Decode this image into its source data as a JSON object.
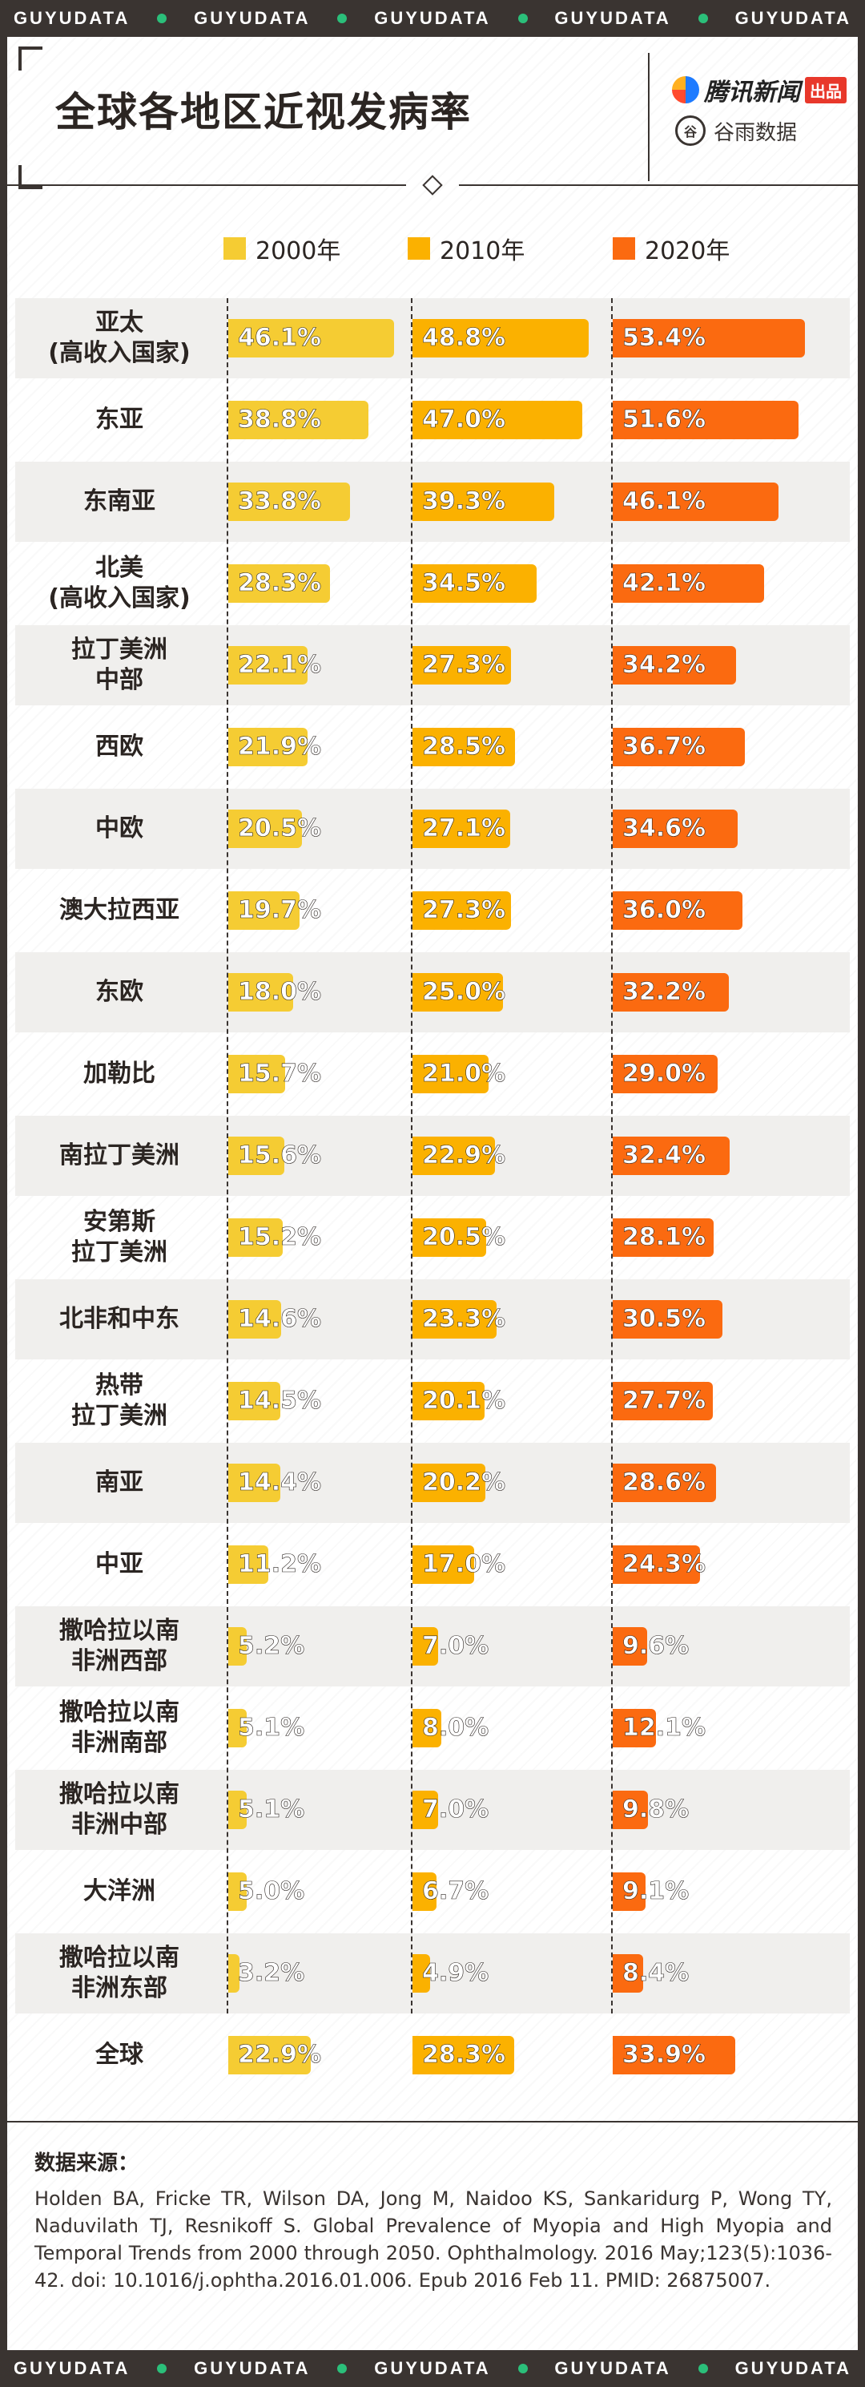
{
  "header": {
    "strip_text": "GUYUDATA",
    "title": "全球各地区近视发病率",
    "brand_tencent": "腾讯新闻",
    "brand_tag": "出品",
    "brand_guyu": "谷雨数据",
    "brand_seal": "谷"
  },
  "colors": {
    "y2000": "#f5cc33",
    "y2010": "#fbb100",
    "y2020": "#fb6a10"
  },
  "chart_data": {
    "type": "bar",
    "title": "全球各地区近视发病率",
    "unit": "%",
    "categories": [
      "亚太\n(高收入国家)",
      "东亚",
      "东南亚",
      "北美\n(高收入国家)",
      "拉丁美洲\n中部",
      "西欧",
      "中欧",
      "澳大拉西亚",
      "东欧",
      "加勒比",
      "南拉丁美洲",
      "安第斯\n拉丁美洲",
      "北非和中东",
      "热带\n拉丁美洲",
      "南亚",
      "中亚",
      "撒哈拉以南\n非洲西部",
      "撒哈拉以南\n非洲南部",
      "撒哈拉以南\n非洲中部",
      "大洋洲",
      "撒哈拉以南\n非洲东部",
      "全球"
    ],
    "series": [
      {
        "name": "2000年",
        "values": [
          46.1,
          38.8,
          33.8,
          28.3,
          22.1,
          21.9,
          20.5,
          19.7,
          18.0,
          15.7,
          15.6,
          15.2,
          14.6,
          14.5,
          14.4,
          11.2,
          5.2,
          5.1,
          5.1,
          5.0,
          3.2,
          22.9
        ],
        "labels": [
          "46.1%",
          "38.8%",
          "33.8%",
          "28.3%",
          "22.1%",
          "21.9%",
          "20.5%",
          "19.7%",
          "18.0%",
          "15.7%",
          "15.6%",
          "15.2%",
          "14.6%",
          "14.5%",
          "14.4%",
          "11.2%",
          "5.2%",
          "5.1%",
          "5.1%",
          "5.0%",
          "3.2%",
          "22.9%"
        ]
      },
      {
        "name": "2010年",
        "values": [
          48.8,
          47.0,
          39.3,
          34.5,
          27.3,
          28.5,
          27.1,
          27.3,
          25.0,
          21.0,
          22.9,
          20.5,
          23.3,
          20.1,
          20.2,
          17.0,
          7.0,
          8.0,
          7.0,
          6.7,
          4.9,
          28.3
        ],
        "labels": [
          "48.8%",
          "47.0%",
          "39.3%",
          "34.5%",
          "27.3%",
          "28.5%",
          "27.1%",
          "27.3%",
          "25.0%",
          "21.0%",
          "22.9%",
          "20.5%",
          "23.3%",
          "20.1%",
          "20.2%",
          "17.0%",
          "7.0%",
          "8.0%",
          "7.0%",
          "6.7%",
          "4.9%",
          "28.3%"
        ]
      },
      {
        "name": "2020年",
        "values": [
          53.4,
          51.6,
          46.1,
          42.1,
          34.2,
          36.7,
          34.6,
          36.0,
          32.2,
          29.0,
          32.4,
          28.1,
          30.5,
          27.7,
          28.6,
          24.3,
          9.6,
          12.1,
          9.8,
          9.1,
          8.4,
          33.9
        ],
        "labels": [
          "53.4%",
          "51.6%",
          "46.1%",
          "42.1%",
          "34.2%",
          "36.7%",
          "34.6%",
          "36.0%",
          "32.2%",
          "29.0%",
          "32.4%",
          "28.1%",
          "30.5%",
          "27.7%",
          "28.6%",
          "24.3%",
          "9.6%",
          "12.1%",
          "9.8%",
          "9.1%",
          "8.4%",
          "33.9%"
        ]
      }
    ],
    "grid": false,
    "legend": "top"
  },
  "source": {
    "title": "数据来源：",
    "text": "Holden BA, Fricke TR, Wilson DA, Jong M, Naidoo KS, Sankaridurg P, Wong TY, Naduvilath TJ, Resnikoff S. Global Prevalence of Myopia and High Myopia and Temporal Trends from 2000 through 2050. Ophthalmology. 2016 May;123(5):1036-42. doi: 10.1016/j.ophtha.2016.01.006. Epub 2016 Feb 11. PMID: 26875007."
  }
}
